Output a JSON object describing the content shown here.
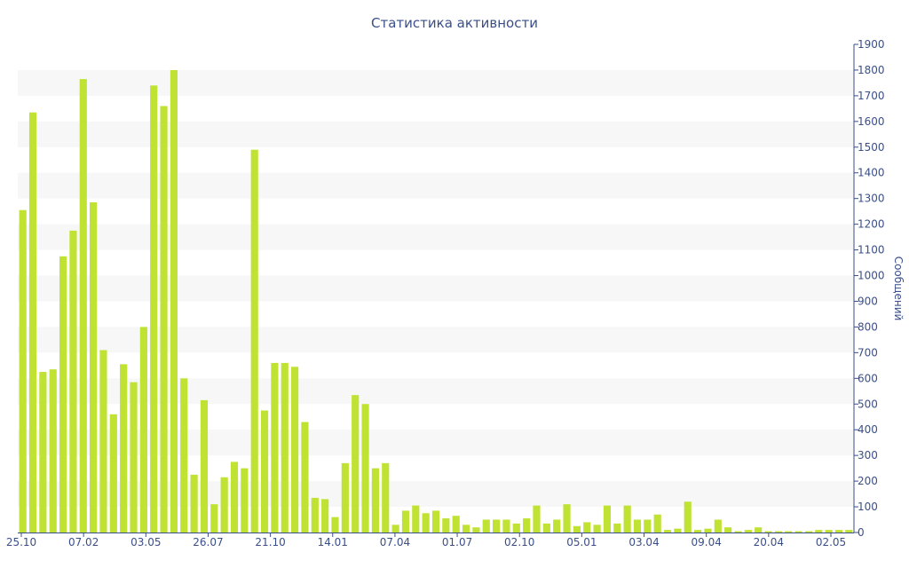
{
  "chart_data": {
    "type": "bar",
    "title": "Статистика активности",
    "ylabel": "Сообщений",
    "xlabel": "",
    "ylim": [
      0,
      1900
    ],
    "y_ticks": [
      0,
      100,
      200,
      300,
      400,
      500,
      600,
      700,
      800,
      900,
      1000,
      1100,
      1200,
      1300,
      1400,
      1500,
      1600,
      1700,
      1800,
      1900
    ],
    "x_tick_labels": [
      "25.10",
      "07.02",
      "03.05",
      "26.07",
      "21.10",
      "14.01",
      "07.04",
      "01.07",
      "02.10",
      "05.01",
      "03.04",
      "09.04",
      "20.04",
      "02.05"
    ],
    "y_axis_position": "right",
    "grid": "horizontal bands",
    "values": [
      1255,
      1635,
      625,
      635,
      1075,
      1175,
      1765,
      1285,
      710,
      460,
      655,
      585,
      800,
      1740,
      1660,
      1800,
      600,
      225,
      515,
      110,
      215,
      275,
      250,
      1490,
      475,
      660,
      660,
      645,
      430,
      135,
      130,
      60,
      270,
      535,
      500,
      250,
      270,
      30,
      85,
      105,
      75,
      85,
      55,
      65,
      30,
      20,
      50,
      50,
      50,
      35,
      55,
      105,
      35,
      50,
      110,
      25,
      40,
      30,
      105,
      35,
      105,
      50,
      50,
      70,
      10,
      15,
      120,
      10,
      15,
      50,
      20,
      5,
      10,
      20,
      5,
      5,
      5,
      5,
      5,
      10,
      10,
      10,
      10
    ],
    "colors": {
      "bar": "#bfe233",
      "band": "#f7f7f7",
      "axis": "#3a4f8a",
      "text": "#3a4f8a"
    }
  }
}
